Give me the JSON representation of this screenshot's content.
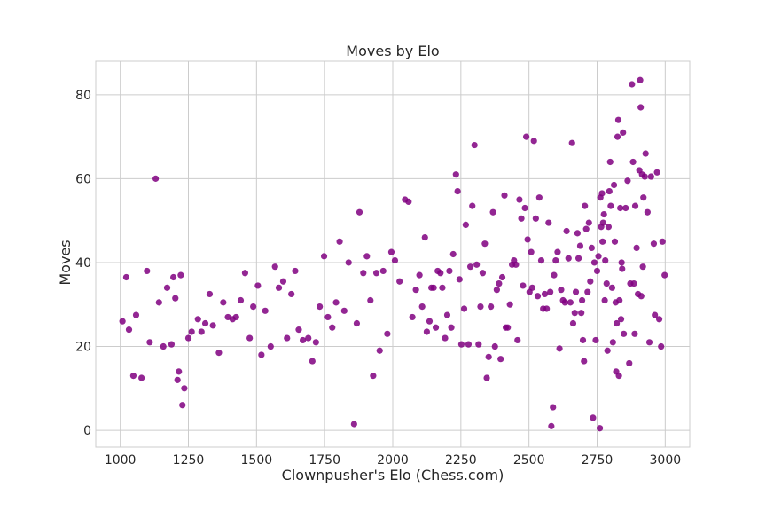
{
  "chart_data": {
    "type": "scatter",
    "title": "Moves by Elo",
    "xlabel": "Clownpusher's Elo (Chess.com)",
    "ylabel": "Moves",
    "xlim": [
      910,
      3090
    ],
    "ylim": [
      -4,
      88
    ],
    "xticks": [
      1000,
      1250,
      1500,
      1750,
      2000,
      2250,
      2500,
      2750,
      3000
    ],
    "yticks": [
      0,
      20,
      40,
      60,
      80
    ],
    "grid": true,
    "marker_color": "#800080",
    "series": [
      {
        "points": [
          [
            1008,
            26
          ],
          [
            1022,
            36.5
          ],
          [
            1032,
            24
          ],
          [
            1048,
            13
          ],
          [
            1058,
            27.5
          ],
          [
            1078,
            12.5
          ],
          [
            1098,
            38
          ],
          [
            1108,
            21
          ],
          [
            1130,
            60
          ],
          [
            1142,
            30.5
          ],
          [
            1158,
            20
          ],
          [
            1172,
            34
          ],
          [
            1188,
            20.5
          ],
          [
            1195,
            36.5
          ],
          [
            1202,
            31.5
          ],
          [
            1210,
            12
          ],
          [
            1215,
            14
          ],
          [
            1222,
            37
          ],
          [
            1228,
            6
          ],
          [
            1235,
            10
          ],
          [
            1250,
            22
          ],
          [
            1262,
            23.5
          ],
          [
            1285,
            26.5
          ],
          [
            1298,
            23.5
          ],
          [
            1312,
            25.5
          ],
          [
            1328,
            32.5
          ],
          [
            1340,
            25
          ],
          [
            1362,
            18.5
          ],
          [
            1378,
            30.5
          ],
          [
            1395,
            27
          ],
          [
            1412,
            26.5
          ],
          [
            1425,
            27
          ],
          [
            1442,
            31
          ],
          [
            1458,
            37.5
          ],
          [
            1475,
            22
          ],
          [
            1488,
            29.5
          ],
          [
            1505,
            34.5
          ],
          [
            1518,
            18
          ],
          [
            1532,
            28.5
          ],
          [
            1552,
            20
          ],
          [
            1568,
            39
          ],
          [
            1582,
            34
          ],
          [
            1598,
            35.5
          ],
          [
            1612,
            22
          ],
          [
            1628,
            32.5
          ],
          [
            1642,
            38
          ],
          [
            1655,
            24
          ],
          [
            1670,
            21.5
          ],
          [
            1690,
            22
          ],
          [
            1705,
            16.5
          ],
          [
            1718,
            21
          ],
          [
            1732,
            29.5
          ],
          [
            1748,
            41.5
          ],
          [
            1762,
            27
          ],
          [
            1778,
            24.5
          ],
          [
            1792,
            30.5
          ],
          [
            1805,
            45
          ],
          [
            1822,
            28.5
          ],
          [
            1838,
            40
          ],
          [
            1858,
            1.5
          ],
          [
            1868,
            25.5
          ],
          [
            1878,
            52
          ],
          [
            1892,
            37.5
          ],
          [
            1905,
            41.5
          ],
          [
            1918,
            31
          ],
          [
            1928,
            13
          ],
          [
            1940,
            37.5
          ],
          [
            1952,
            19
          ],
          [
            1965,
            38
          ],
          [
            1980,
            23
          ],
          [
            1995,
            42.5
          ],
          [
            2008,
            40.5
          ],
          [
            2025,
            35.5
          ],
          [
            2045,
            55
          ],
          [
            2058,
            54.5
          ],
          [
            2072,
            27
          ],
          [
            2085,
            33.5
          ],
          [
            2098,
            37
          ],
          [
            2108,
            29.5
          ],
          [
            2118,
            46
          ],
          [
            2125,
            23.5
          ],
          [
            2135,
            26
          ],
          [
            2142,
            34
          ],
          [
            2150,
            34
          ],
          [
            2158,
            24.5
          ],
          [
            2165,
            38
          ],
          [
            2175,
            37.5
          ],
          [
            2182,
            34
          ],
          [
            2192,
            22
          ],
          [
            2200,
            27.5
          ],
          [
            2208,
            38
          ],
          [
            2215,
            24.5
          ],
          [
            2222,
            42
          ],
          [
            2232,
            61
          ],
          [
            2238,
            57
          ],
          [
            2245,
            36
          ],
          [
            2252,
            20.5
          ],
          [
            2262,
            29
          ],
          [
            2268,
            49
          ],
          [
            2278,
            20.5
          ],
          [
            2285,
            39
          ],
          [
            2292,
            53.5
          ],
          [
            2300,
            68
          ],
          [
            2308,
            39.5
          ],
          [
            2315,
            20.5
          ],
          [
            2322,
            29.5
          ],
          [
            2330,
            37.5
          ],
          [
            2338,
            44.5
          ],
          [
            2345,
            12.5
          ],
          [
            2352,
            17.5
          ],
          [
            2360,
            29.5
          ],
          [
            2368,
            52
          ],
          [
            2375,
            20
          ],
          [
            2382,
            33.5
          ],
          [
            2390,
            35
          ],
          [
            2396,
            17
          ],
          [
            2402,
            36.5
          ],
          [
            2410,
            56
          ],
          [
            2415,
            24.5
          ],
          [
            2422,
            24.5
          ],
          [
            2430,
            30
          ],
          [
            2438,
            39.5
          ],
          [
            2445,
            40.5
          ],
          [
            2452,
            39.5
          ],
          [
            2458,
            21.5
          ],
          [
            2465,
            55
          ],
          [
            2472,
            50.5
          ],
          [
            2478,
            34.5
          ],
          [
            2485,
            53
          ],
          [
            2490,
            70
          ],
          [
            2495,
            45.5
          ],
          [
            2502,
            33
          ],
          [
            2508,
            42.5
          ],
          [
            2512,
            34
          ],
          [
            2518,
            69
          ],
          [
            2525,
            50.5
          ],
          [
            2532,
            32
          ],
          [
            2538,
            55.5
          ],
          [
            2545,
            40.5
          ],
          [
            2552,
            29
          ],
          [
            2558,
            32.5
          ],
          [
            2565,
            29
          ],
          [
            2572,
            49.5
          ],
          [
            2578,
            33
          ],
          [
            2582,
            1
          ],
          [
            2588,
            5.5
          ],
          [
            2592,
            37
          ],
          [
            2598,
            40.5
          ],
          [
            2605,
            42.5
          ],
          [
            2612,
            19.5
          ],
          [
            2618,
            33.5
          ],
          [
            2625,
            31
          ],
          [
            2632,
            30.5
          ],
          [
            2638,
            47.5
          ],
          [
            2645,
            41
          ],
          [
            2652,
            30.5
          ],
          [
            2658,
            68.5
          ],
          [
            2662,
            25.5
          ],
          [
            2668,
            28
          ],
          [
            2672,
            33
          ],
          [
            2678,
            47
          ],
          [
            2682,
            41
          ],
          [
            2688,
            44
          ],
          [
            2692,
            28
          ],
          [
            2695,
            31
          ],
          [
            2698,
            21.5
          ],
          [
            2702,
            16.5
          ],
          [
            2705,
            53.5
          ],
          [
            2710,
            48
          ],
          [
            2715,
            33
          ],
          [
            2720,
            49.5
          ],
          [
            2725,
            35.5
          ],
          [
            2730,
            43.5
          ],
          [
            2735,
            3
          ],
          [
            2740,
            40
          ],
          [
            2745,
            21.5
          ],
          [
            2750,
            38
          ],
          [
            2755,
            41.5
          ],
          [
            2760,
            0.5
          ],
          [
            2762,
            55.5
          ],
          [
            2765,
            48.5
          ],
          [
            2768,
            56.5
          ],
          [
            2770,
            45
          ],
          [
            2772,
            49.5
          ],
          [
            2775,
            51.5
          ],
          [
            2778,
            31
          ],
          [
            2780,
            40.5
          ],
          [
            2785,
            35
          ],
          [
            2788,
            19
          ],
          [
            2792,
            48.5
          ],
          [
            2795,
            57
          ],
          [
            2798,
            64
          ],
          [
            2800,
            53.5
          ],
          [
            2805,
            34
          ],
          [
            2808,
            21
          ],
          [
            2812,
            58.5
          ],
          [
            2815,
            45
          ],
          [
            2818,
            30.5
          ],
          [
            2820,
            14
          ],
          [
            2822,
            25.5
          ],
          [
            2825,
            70
          ],
          [
            2828,
            74
          ],
          [
            2830,
            13
          ],
          [
            2832,
            31
          ],
          [
            2835,
            53
          ],
          [
            2838,
            26.5
          ],
          [
            2840,
            40
          ],
          [
            2842,
            38.5
          ],
          [
            2845,
            71
          ],
          [
            2848,
            23
          ],
          [
            2855,
            53
          ],
          [
            2862,
            59.5
          ],
          [
            2868,
            16
          ],
          [
            2872,
            35
          ],
          [
            2878,
            82.5
          ],
          [
            2882,
            64
          ],
          [
            2885,
            35
          ],
          [
            2888,
            23
          ],
          [
            2890,
            53.5
          ],
          [
            2895,
            43.5
          ],
          [
            2900,
            32.5
          ],
          [
            2905,
            62
          ],
          [
            2908,
            83.5
          ],
          [
            2910,
            77
          ],
          [
            2912,
            32
          ],
          [
            2915,
            61
          ],
          [
            2918,
            39
          ],
          [
            2920,
            55.5
          ],
          [
            2925,
            60.5
          ],
          [
            2928,
            66
          ],
          [
            2935,
            52
          ],
          [
            2942,
            21
          ],
          [
            2948,
            60.5
          ],
          [
            2958,
            44.5
          ],
          [
            2962,
            27.5
          ],
          [
            2970,
            61.5
          ],
          [
            2978,
            26.5
          ],
          [
            2985,
            20
          ],
          [
            2990,
            45
          ],
          [
            2998,
            37
          ]
        ]
      }
    ]
  }
}
